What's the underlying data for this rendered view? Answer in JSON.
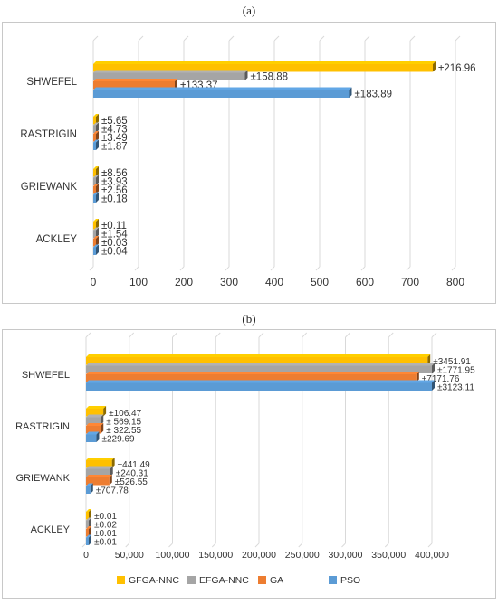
{
  "panels": [
    {
      "label": "(a)"
    },
    {
      "label": "(b)"
    }
  ],
  "colors": {
    "GFGA-NNC": "#FFC000",
    "EFGA-NNC": "#A5A5A5",
    "GA": "#ED7D31",
    "PSO": "#5B9BD5"
  },
  "chart_data": [
    {
      "type": "bar",
      "orientation": "horizontal",
      "categories": [
        "SHWEFEL",
        "RASTRIGIN",
        "GRIEWANK",
        "ACKLEY"
      ],
      "series": [
        {
          "name": "GFGA-NNC",
          "values": [
            750,
            6,
            6,
            5
          ],
          "labels": [
            "±216.96",
            "±5.65",
            "±8.56",
            "±0.11"
          ]
        },
        {
          "name": "EFGA-NNC",
          "values": [
            335,
            3,
            3,
            4
          ],
          "labels": [
            "±158.88",
            "±4.73",
            "±3.93",
            "±1.54"
          ]
        },
        {
          "name": "GA",
          "values": [
            180,
            3,
            3,
            3
          ],
          "labels": [
            "±133.37",
            "±3.49",
            "±2.56",
            "±0.03"
          ]
        },
        {
          "name": "PSO",
          "values": [
            565,
            2,
            2,
            4
          ],
          "labels": [
            "±183.89",
            "±1.87",
            "±0.18",
            "±0.04"
          ]
        }
      ],
      "xlim": [
        0,
        800
      ],
      "xticks": [
        "0",
        "100",
        "200",
        "300",
        "400",
        "500",
        "600",
        "700",
        "800"
      ],
      "xtick_values": [
        0,
        100,
        200,
        300,
        400,
        500,
        600,
        700,
        800
      ],
      "grid": true,
      "legend_position": "bottom"
    },
    {
      "type": "bar",
      "orientation": "horizontal",
      "categories": [
        "SHWEFEL",
        "RASTRIGIN",
        "GRIEWANK",
        "ACKLEY"
      ],
      "series": [
        {
          "name": "GFGA-NNC",
          "values": [
            395000,
            20000,
            30000,
            1000
          ],
          "labels": [
            "±3451.91",
            "±106.47",
            "±441.49",
            "±0.01"
          ]
        },
        {
          "name": "EFGA-NNC",
          "values": [
            400000,
            17000,
            28000,
            1000
          ],
          "labels": [
            "±1771.95",
            "± 569.15",
            "±240.31",
            "±0.02"
          ]
        },
        {
          "name": "GA",
          "values": [
            382000,
            17000,
            27000,
            1000
          ],
          "labels": [
            "±7171.76",
            "± 322.55",
            "±526.55",
            "±0.01"
          ]
        },
        {
          "name": "PSO",
          "values": [
            400000,
            12000,
            5000,
            1000
          ],
          "labels": [
            "±3123.11",
            "±229.69",
            "±707.78",
            "±0.01"
          ]
        }
      ],
      "xlim": [
        0,
        400000
      ],
      "xticks": [
        "0",
        "50,000",
        "100,000",
        "150,000",
        "200,000",
        "250,000",
        "300,000",
        "350,000",
        "400,000"
      ],
      "xtick_values": [
        0,
        50000,
        100000,
        150000,
        200000,
        250000,
        300000,
        350000,
        400000
      ],
      "grid": true,
      "legend_position": "bottom"
    }
  ]
}
